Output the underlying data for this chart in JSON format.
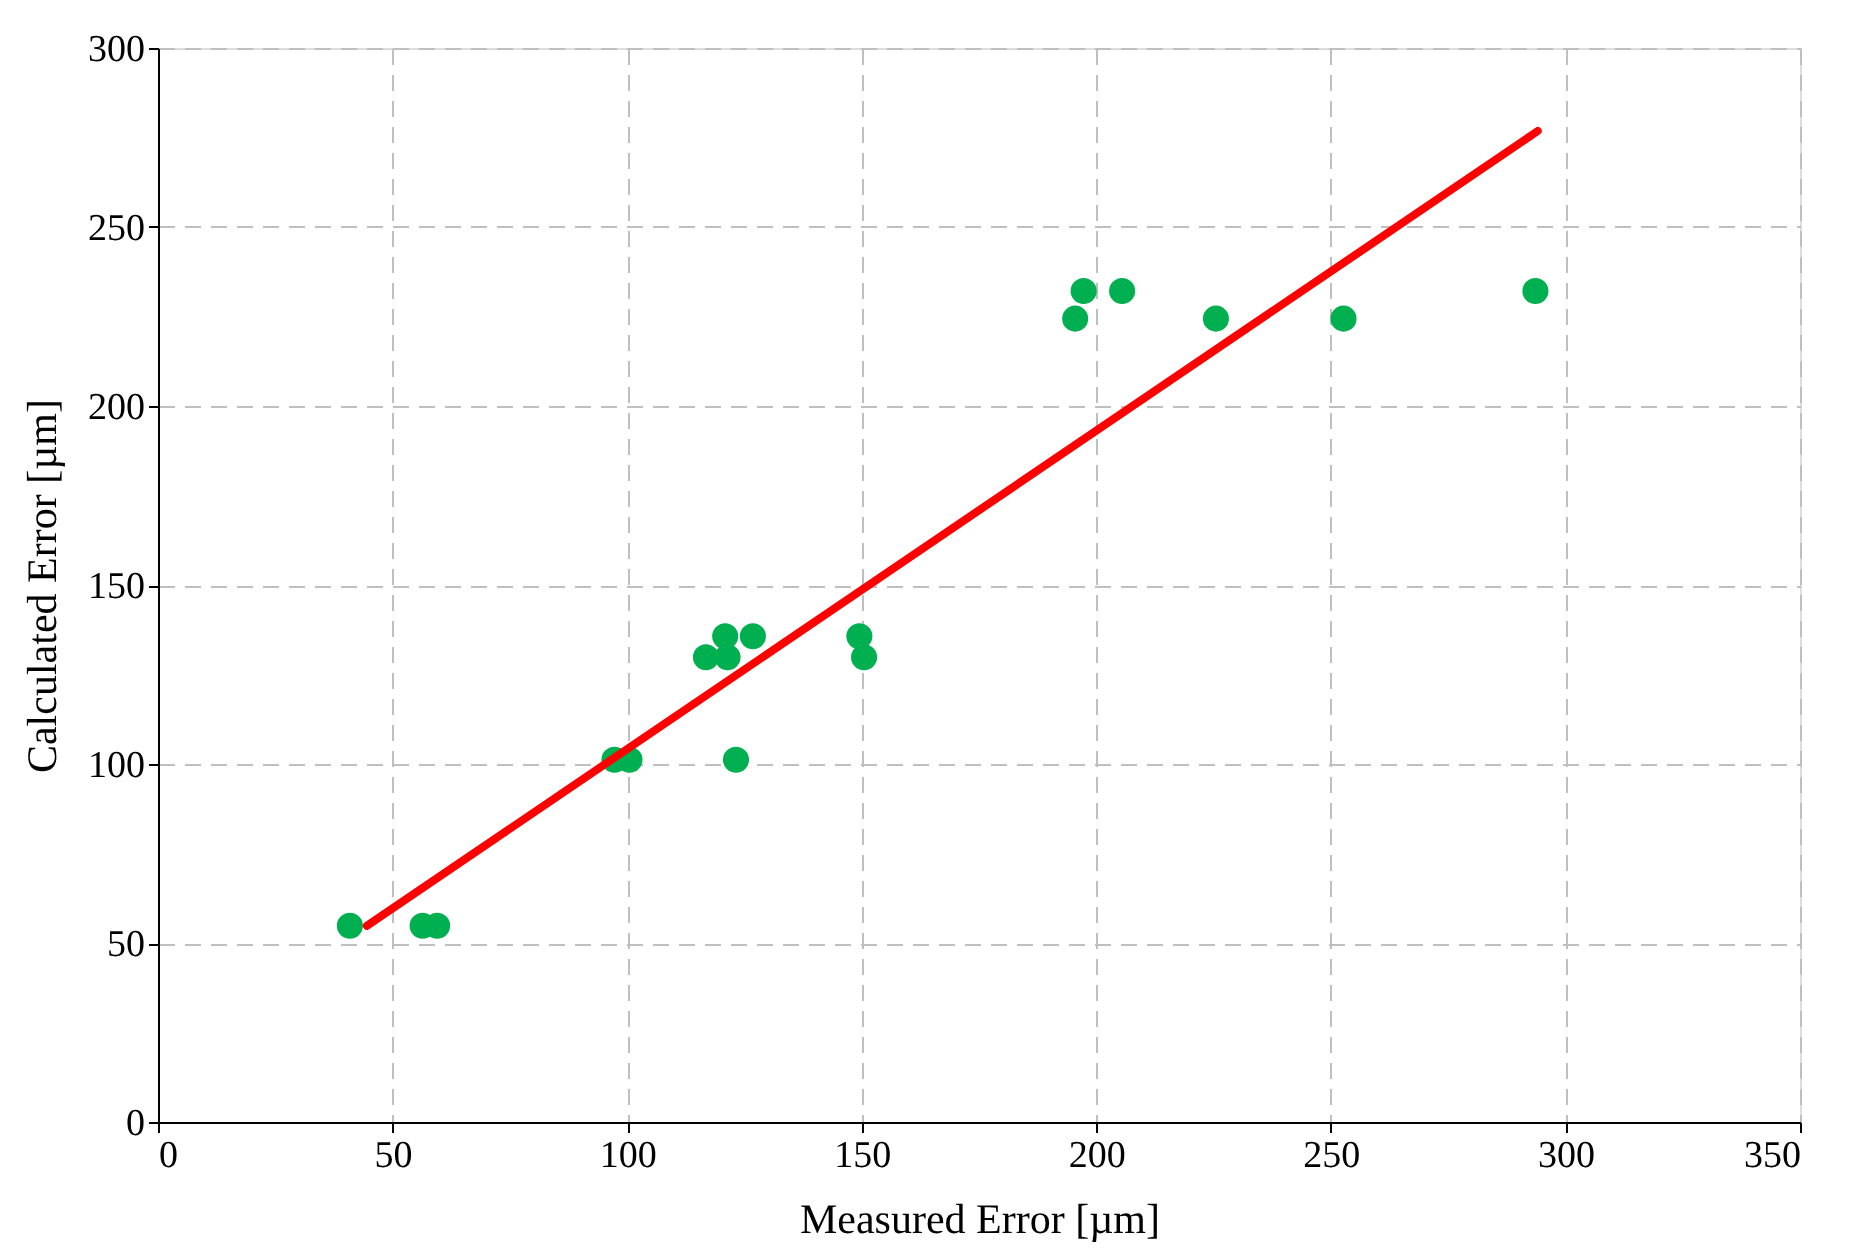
{
  "chart_data": {
    "type": "scatter",
    "xlabel": "Measured Error [µm]",
    "ylabel": "Calculated Error [µm]",
    "xlim": [
      0,
      350
    ],
    "xticks": [
      0,
      50,
      100,
      150,
      200,
      250,
      300,
      350
    ],
    "ylim": [
      0,
      300
    ],
    "yticks": [
      0,
      50,
      100,
      150,
      200,
      250,
      300
    ],
    "grid": true,
    "series": [
      {
        "color": "#00b050",
        "marker": "circle",
        "x": [
          40.9,
          56.4,
          59.5,
          97.3,
          100.5,
          123.2,
          116.8,
          121.4,
          120.9,
          126.8,
          149.5,
          150.5,
          195.5,
          197.3,
          205.5,
          225.5,
          252.7,
          293.6
        ],
        "values": [
          54.8,
          54.8,
          54.8,
          101.2,
          101.2,
          101.2,
          129.8,
          129.8,
          135.7,
          135.7,
          135.7,
          129.8,
          224.4,
          232.1,
          232.1,
          224.4,
          224.4,
          232.1
        ]
      },
      {
        "type": "line",
        "color": "#ff0000",
        "line_style": "solid",
        "marker": "none",
        "x": [
          44.5,
          294.1
        ],
        "values": [
          54.8,
          276.8
        ]
      }
    ]
  }
}
